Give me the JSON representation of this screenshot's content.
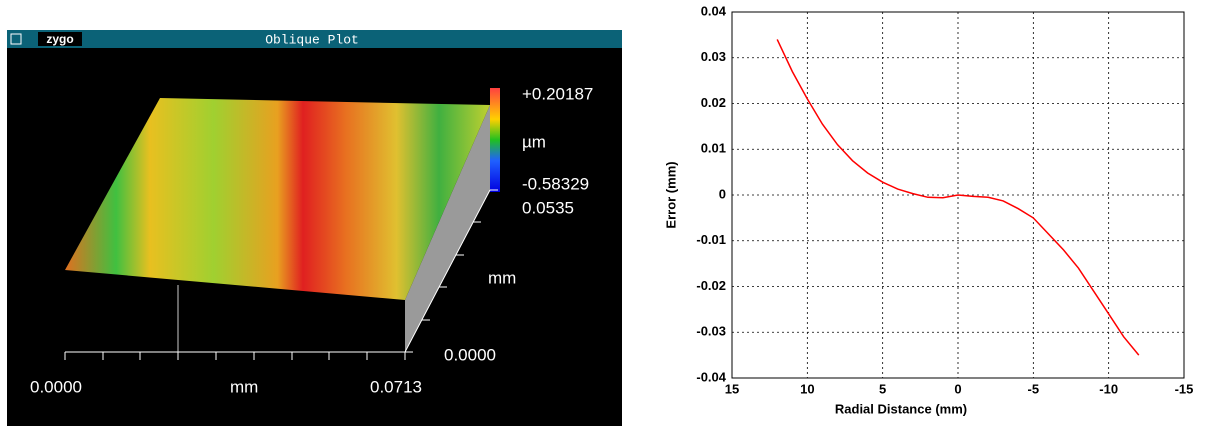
{
  "oblique_plot": {
    "logo": "zygo",
    "title": "Oblique Plot",
    "color_scale": {
      "max": "+0.20187",
      "unit": "µm",
      "min": "-0.58329"
    },
    "y_axis": {
      "max": "0.0535",
      "unit": "mm",
      "min": "0.0000"
    },
    "x_axis": {
      "min": "0.0000",
      "unit": "mm",
      "max": "0.0713"
    }
  },
  "chart_data": {
    "type": "line",
    "xlabel": "Radial Distance (mm)",
    "ylabel": "Error (mm)",
    "x": [
      12,
      11,
      10,
      9,
      8,
      7,
      6,
      5,
      4,
      3,
      2,
      1,
      0,
      -1,
      -2,
      -3,
      -4,
      -5,
      -6,
      -7,
      -8,
      -9,
      -10,
      -11,
      -12
    ],
    "values": [
      0.034,
      0.027,
      0.021,
      0.0155,
      0.011,
      0.0075,
      0.0048,
      0.0028,
      0.0013,
      0.0003,
      -0.0005,
      -0.0006,
      0,
      -0.0003,
      -0.0005,
      -0.0013,
      -0.003,
      -0.005,
      -0.0085,
      -0.012,
      -0.016,
      -0.021,
      -0.026,
      -0.031,
      -0.035
    ],
    "color": "#ff0000",
    "xlim": [
      15,
      -15
    ],
    "xticks": [
      15,
      10,
      5,
      0,
      -5,
      -10,
      -15
    ],
    "ylim": [
      -0.04,
      0.04
    ],
    "yticks": [
      -0.04,
      -0.03,
      -0.02,
      -0.01,
      0,
      0.01,
      0.02,
      0.03,
      0.04
    ],
    "grid": true
  }
}
